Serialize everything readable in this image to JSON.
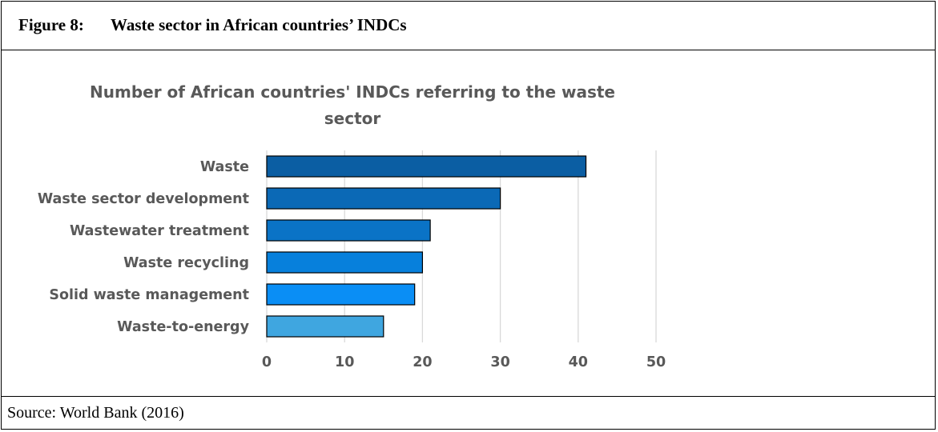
{
  "figure": {
    "number": "Figure 8:",
    "title": "Waste sector in African countries’ INDCs",
    "source": "Source: World Bank (2016)"
  },
  "chart_data": {
    "type": "bar",
    "orientation": "horizontal",
    "title_lines": [
      "Number of African countries' INDCs referring to the waste",
      "sector"
    ],
    "categories": [
      "Waste",
      "Waste sector development",
      "Wastewater treatment",
      "Waste recycling",
      "Solid waste management",
      "Waste-to-energy"
    ],
    "values": [
      41,
      30,
      21,
      20,
      19,
      15
    ],
    "bar_colors": [
      "#0b5ea3",
      "#0b69b6",
      "#0a73c6",
      "#0780dc",
      "#0a8ef5",
      "#3fa6e0"
    ],
    "xlim": [
      0,
      50
    ],
    "xticks": [
      0,
      10,
      20,
      30,
      40,
      50
    ],
    "grid": true,
    "legend": false,
    "xlabel": "",
    "ylabel": ""
  }
}
